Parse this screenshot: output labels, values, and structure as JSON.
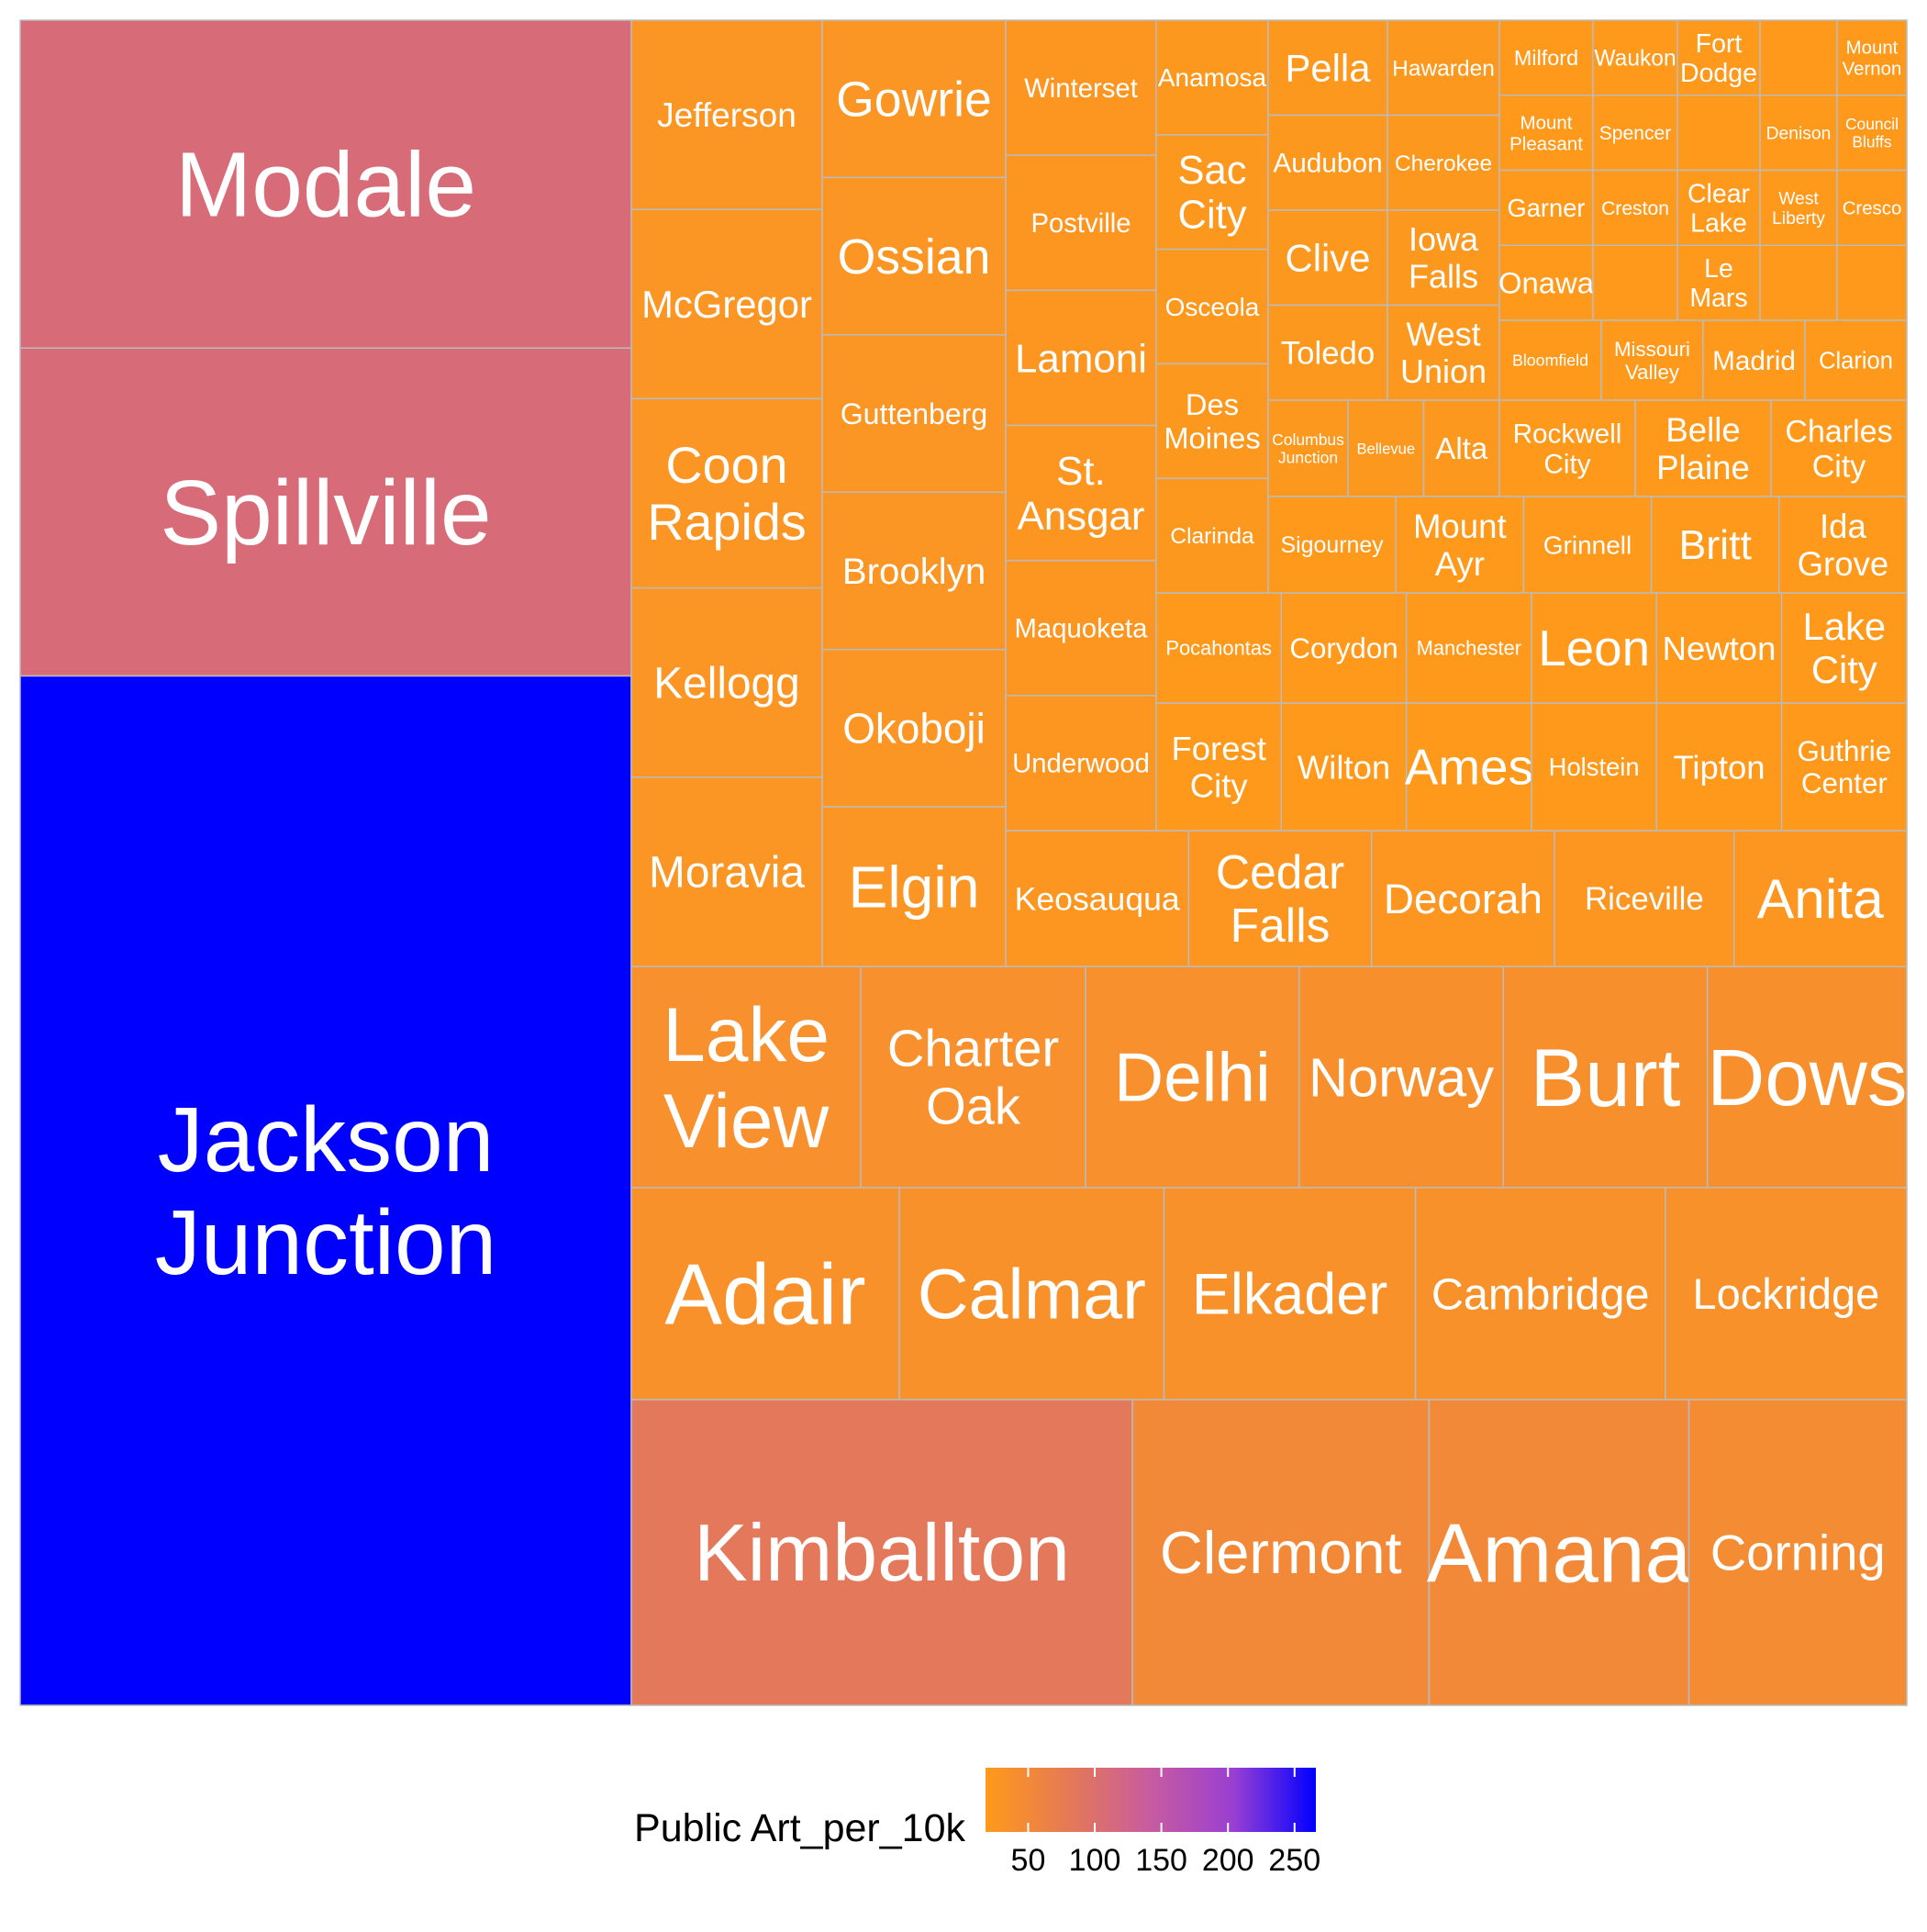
{
  "chart_data": {
    "type": "treemap",
    "title": "",
    "value_label": "",
    "legend": {
      "title": "Public Art_per_10k",
      "position": "bottom",
      "ticks": [
        50,
        100,
        150,
        200,
        250
      ],
      "min": 18,
      "max": 266,
      "color_low": "#FFA500",
      "color_high": "#0000FF",
      "colorbar_gradient": [
        "#FF9A1A",
        "#E57A55",
        "#C75BA0",
        "#9A3FD2",
        "#0000FF"
      ]
    },
    "tile_border_color": "#BBBBBB",
    "label_color": "#FFFFFF",
    "items": [
      {
        "label": "Jackson Junction",
        "value": 1262,
        "color": 266
      },
      {
        "label": "Modale",
        "value": 402,
        "color": 109
      },
      {
        "label": "Spillville",
        "value": 402,
        "color": 109
      },
      {
        "label": "Kimballton",
        "value": 407,
        "color": 84
      },
      {
        "label": "Clermont",
        "value": 241,
        "color": 50
      },
      {
        "label": "Amana",
        "value": 211,
        "color": 50
      },
      {
        "label": "Corning",
        "value": 177,
        "color": 45
      },
      {
        "label": "Lake View",
        "value": 145,
        "color": 38
      },
      {
        "label": "Charter Oak",
        "value": 142,
        "color": 38
      },
      {
        "label": "Delhi",
        "value": 135,
        "color": 38
      },
      {
        "label": "Norway",
        "value": 129,
        "color": 37
      },
      {
        "label": "Burt",
        "value": 129,
        "color": 37
      },
      {
        "label": "Dows",
        "value": 126,
        "color": 37
      },
      {
        "label": "Adair",
        "value": 162,
        "color": 35
      },
      {
        "label": "Calmar",
        "value": 160,
        "color": 35
      },
      {
        "label": "Elkader",
        "value": 152,
        "color": 35
      },
      {
        "label": "Cambridge",
        "value": 151,
        "color": 35
      },
      {
        "label": "Lockridge",
        "value": 146,
        "color": 35
      },
      {
        "label": "Jefferson",
        "value": 79,
        "color": 28
      },
      {
        "label": "McGregor",
        "value": 79,
        "color": 28
      },
      {
        "label": "Coon Rapids",
        "value": 79,
        "color": 28
      },
      {
        "label": "Kellogg",
        "value": 79,
        "color": 28
      },
      {
        "label": "Moravia",
        "value": 79,
        "color": 28
      },
      {
        "label": "Gowrie",
        "value": 68,
        "color": 27
      },
      {
        "label": "Ossian",
        "value": 68,
        "color": 27
      },
      {
        "label": "Guttenberg",
        "value": 68,
        "color": 27
      },
      {
        "label": "Brooklyn",
        "value": 68,
        "color": 27
      },
      {
        "label": "Okoboji",
        "value": 68,
        "color": 27
      },
      {
        "label": "Elgin",
        "value": 69,
        "color": 27
      },
      {
        "label": "Winterset",
        "value": 41,
        "color": 25
      },
      {
        "label": "Postville",
        "value": 41,
        "color": 25
      },
      {
        "label": "Lamoni",
        "value": 41,
        "color": 25
      },
      {
        "label": "St. Ansgar",
        "value": 41,
        "color": 25
      },
      {
        "label": "Maquoketa",
        "value": 41,
        "color": 25
      },
      {
        "label": "Underwood",
        "value": 41,
        "color": 25
      },
      {
        "label": "Keosauqua",
        "value": 54,
        "color": 25
      },
      {
        "label": "Cedar Falls",
        "value": 54,
        "color": 25
      },
      {
        "label": "Decorah",
        "value": 54,
        "color": 25
      },
      {
        "label": "Riceville",
        "value": 53,
        "color": 25
      },
      {
        "label": "Anita",
        "value": 51,
        "color": 25
      },
      {
        "label": "Anamosa",
        "value": 24,
        "color": 22
      },
      {
        "label": "Sac City",
        "value": 24,
        "color": 22
      },
      {
        "label": "Osceola",
        "value": 24,
        "color": 22
      },
      {
        "label": "Des Moines",
        "value": 24,
        "color": 22
      },
      {
        "label": "Clarinda",
        "value": 24,
        "color": 22
      },
      {
        "label": "Pella",
        "value": 19,
        "color": 22
      },
      {
        "label": "Audubon",
        "value": 19,
        "color": 22
      },
      {
        "label": "Clive",
        "value": 19,
        "color": 22
      },
      {
        "label": "Toledo",
        "value": 19,
        "color": 22
      },
      {
        "label": "Columbus Junction",
        "value": 19,
        "color": 22
      },
      {
        "label": "Hawarden",
        "value": 18,
        "color": 22
      },
      {
        "label": "Cherokee",
        "value": 18,
        "color": 22
      },
      {
        "label": "Iowa Falls",
        "value": 18,
        "color": 22
      },
      {
        "label": "West Union",
        "value": 18,
        "color": 22
      },
      {
        "label": "Bellevue",
        "value": 18,
        "color": 22
      },
      {
        "label": "Alta",
        "value": 18,
        "color": 22
      },
      {
        "label": "Milford",
        "value": 10,
        "color": 20
      },
      {
        "label": "Mount Pleasant",
        "value": 10,
        "color": 20
      },
      {
        "label": "Garner",
        "value": 10,
        "color": 20
      },
      {
        "label": "Onawa",
        "value": 10,
        "color": 20
      },
      {
        "label": "Waukon",
        "value": 10,
        "color": 20
      },
      {
        "label": "Spencer",
        "value": 10,
        "color": 20
      },
      {
        "label": "Creston",
        "value": 10,
        "color": 20
      },
      {
        "label": "",
        "value": 10,
        "color": 20
      },
      {
        "label": "Fort Dodge",
        "value": 9,
        "color": 20
      },
      {
        "label": "Clear Lake",
        "value": 9,
        "color": 20
      },
      {
        "label": "Le Mars",
        "value": 9,
        "color": 20
      },
      {
        "label": "",
        "value": 9,
        "color": 20
      },
      {
        "label": "Denison",
        "value": 9,
        "color": 20
      },
      {
        "label": "West Liberty",
        "value": 9,
        "color": 20
      },
      {
        "label": "",
        "value": 9,
        "color": 20
      },
      {
        "label": "",
        "value": 9,
        "color": 20
      },
      {
        "label": "Mount Vernon",
        "value": 8,
        "color": 20
      },
      {
        "label": "Council Bluffs",
        "value": 8,
        "color": 20
      },
      {
        "label": "Cresco",
        "value": 8,
        "color": 20
      },
      {
        "label": "",
        "value": 8,
        "color": 20
      },
      {
        "label": "Bloomfield",
        "value": 10,
        "color": 20
      },
      {
        "label": "Missouri Valley",
        "value": 10,
        "color": 20
      },
      {
        "label": "Madrid",
        "value": 10,
        "color": 20
      },
      {
        "label": "Clarion",
        "value": 10,
        "color": 20
      },
      {
        "label": "Rockwell City",
        "value": 10,
        "color": 20
      },
      {
        "label": "Belle Plaine",
        "value": 10,
        "color": 20
      },
      {
        "label": "Charles City",
        "value": 10,
        "color": 20
      },
      {
        "label": "Sigourney",
        "value": 17,
        "color": 20
      },
      {
        "label": "Mount Ayr",
        "value": 17,
        "color": 20
      },
      {
        "label": "Grinnell",
        "value": 17,
        "color": 20
      },
      {
        "label": "Britt",
        "value": 17,
        "color": 20
      },
      {
        "label": "Ida Grove",
        "value": 17,
        "color": 20
      },
      {
        "label": "Pocahontas",
        "value": 17,
        "color": 20
      },
      {
        "label": "Corydon",
        "value": 17,
        "color": 20
      },
      {
        "label": "Manchester",
        "value": 17,
        "color": 20
      },
      {
        "label": "Leon",
        "value": 17,
        "color": 20
      },
      {
        "label": "Newton",
        "value": 17,
        "color": 20
      },
      {
        "label": "Lake City",
        "value": 17,
        "color": 20
      },
      {
        "label": "Forest City",
        "value": 17,
        "color": 20
      },
      {
        "label": "Wilton",
        "value": 17,
        "color": 20
      },
      {
        "label": "Ames",
        "value": 17,
        "color": 20
      },
      {
        "label": "Holstein",
        "value": 17,
        "color": 20
      },
      {
        "label": "Tipton",
        "value": 17,
        "color": 20
      },
      {
        "label": "Guthrie Center",
        "value": 17,
        "color": 20
      }
    ]
  }
}
